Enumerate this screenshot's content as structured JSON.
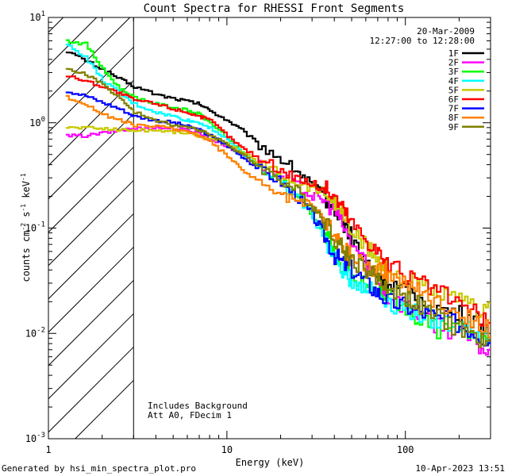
{
  "chart_data": {
    "type": "line",
    "title": "Count Spectra for RHESSI Front Segments",
    "date": "20-Mar-2009",
    "time_range": "12:27:00 to 12:28:00",
    "xlabel": "Energy (keV)",
    "ylabel_main": "counts cm",
    "ylabel_sup1": "-2",
    "ylabel_mid": " s",
    "ylabel_sup2": "-1",
    "ylabel_end": " keV",
    "ylabel_sup3": "-1",
    "xscale": "log",
    "yscale": "log",
    "xlim": [
      1,
      300
    ],
    "ylim": [
      0.001,
      10
    ],
    "x_ticks": [
      {
        "value": 1,
        "label": "1"
      },
      {
        "value": 10,
        "label": "10"
      },
      {
        "value": 100,
        "label": "100"
      }
    ],
    "y_ticks": [
      {
        "value": 10,
        "base": "10",
        "exp": "1"
      },
      {
        "value": 1,
        "base": "10",
        "exp": "0"
      },
      {
        "value": 0.1,
        "base": "10",
        "exp": "-1"
      },
      {
        "value": 0.01,
        "base": "10",
        "exp": "-2"
      },
      {
        "value": 0.001,
        "base": "10",
        "exp": "-3"
      }
    ],
    "shaded_region": {
      "x_start": 1,
      "x_end": 3,
      "style": "hatched"
    },
    "annotations": [
      "Includes Background",
      "Att A0, FDecim 1"
    ],
    "footer_left": "Generated by hsi_min_spectra_plot.pro",
    "footer_right": "10-Apr-2023 13:51",
    "legend_position": "top-right",
    "series": [
      {
        "name": "1F",
        "color": "#000000",
        "x": [
          1.25,
          1.6,
          2,
          2.5,
          3,
          4,
          5,
          6,
          7,
          8,
          10,
          12,
          15,
          20,
          25,
          30,
          35,
          40,
          45,
          50,
          60,
          70,
          80,
          100,
          120,
          150,
          200,
          250,
          300
        ],
        "y": [
          4.8,
          3.9,
          3.2,
          2.6,
          2.2,
          1.85,
          1.7,
          1.6,
          1.5,
          1.3,
          1.05,
          0.85,
          0.62,
          0.45,
          0.34,
          0.25,
          0.2,
          0.16,
          0.11,
          0.08,
          0.045,
          0.035,
          0.03,
          0.025,
          0.02,
          0.017,
          0.015,
          0.013,
          0.01
        ]
      },
      {
        "name": "2F",
        "color": "#ff00ff",
        "x": [
          1.25,
          1.6,
          2,
          2.5,
          3,
          4,
          5,
          6,
          7,
          8,
          10,
          12,
          15,
          20,
          25,
          30,
          35,
          40,
          45,
          50,
          60,
          70,
          80,
          100,
          120,
          150,
          200,
          250,
          300
        ],
        "y": [
          0.75,
          0.75,
          0.8,
          0.85,
          0.88,
          0.9,
          0.88,
          0.85,
          0.8,
          0.7,
          0.6,
          0.5,
          0.4,
          0.3,
          0.25,
          0.2,
          0.18,
          0.15,
          0.1,
          0.07,
          0.045,
          0.03,
          0.022,
          0.018,
          0.015,
          0.012,
          0.01,
          0.008,
          0.006
        ]
      },
      {
        "name": "3F",
        "color": "#00ff00",
        "x": [
          1.25,
          1.6,
          2,
          2.5,
          3,
          4,
          5,
          6,
          7,
          8,
          10,
          12,
          15,
          20,
          25,
          30,
          35,
          40,
          45,
          50,
          60,
          70,
          80,
          100,
          120,
          150,
          200,
          250,
          300
        ],
        "y": [
          6.0,
          5.6,
          3.2,
          2.1,
          1.75,
          1.5,
          1.4,
          1.3,
          1.2,
          1.0,
          0.72,
          0.52,
          0.38,
          0.28,
          0.2,
          0.14,
          0.09,
          0.055,
          0.04,
          0.032,
          0.028,
          0.025,
          0.022,
          0.018,
          0.013,
          0.011,
          0.011,
          0.01,
          0.009
        ]
      },
      {
        "name": "4F",
        "color": "#00ffff",
        "x": [
          1.25,
          1.6,
          2,
          2.5,
          3,
          4,
          5,
          6,
          7,
          8,
          10,
          12,
          15,
          20,
          25,
          30,
          35,
          40,
          45,
          50,
          60,
          70,
          80,
          100,
          120,
          150,
          200,
          250,
          300
        ],
        "y": [
          5.5,
          4.2,
          2.5,
          1.9,
          1.5,
          1.25,
          1.15,
          1.05,
          1.0,
          0.9,
          0.68,
          0.52,
          0.38,
          0.26,
          0.19,
          0.13,
          0.08,
          0.05,
          0.038,
          0.032,
          0.028,
          0.024,
          0.02,
          0.017,
          0.015,
          0.013,
          0.012,
          0.01,
          0.009
        ]
      },
      {
        "name": "5F",
        "color": "#c8c800",
        "x": [
          1.25,
          1.6,
          2,
          2.5,
          3,
          4,
          5,
          6,
          7,
          8,
          10,
          12,
          15,
          20,
          25,
          30,
          35,
          40,
          45,
          50,
          60,
          70,
          80,
          100,
          120,
          150,
          200,
          250,
          300
        ],
        "y": [
          0.9,
          0.9,
          0.88,
          0.86,
          0.85,
          0.85,
          0.82,
          0.8,
          0.75,
          0.7,
          0.62,
          0.52,
          0.42,
          0.32,
          0.27,
          0.24,
          0.22,
          0.18,
          0.13,
          0.09,
          0.065,
          0.05,
          0.04,
          0.033,
          0.028,
          0.024,
          0.02,
          0.017,
          0.016
        ]
      },
      {
        "name": "6F",
        "color": "#ff0000",
        "x": [
          1.25,
          1.6,
          2,
          2.5,
          3,
          4,
          5,
          6,
          7,
          8,
          10,
          12,
          15,
          20,
          25,
          30,
          35,
          40,
          45,
          50,
          60,
          70,
          80,
          100,
          120,
          150,
          200,
          250,
          300
        ],
        "y": [
          2.8,
          2.5,
          2.2,
          1.9,
          1.65,
          1.5,
          1.35,
          1.25,
          1.15,
          1.05,
          0.75,
          0.58,
          0.46,
          0.35,
          0.3,
          0.26,
          0.24,
          0.2,
          0.15,
          0.11,
          0.08,
          0.06,
          0.045,
          0.035,
          0.03,
          0.025,
          0.019,
          0.015,
          0.011
        ]
      },
      {
        "name": "7F",
        "color": "#0000ff",
        "x": [
          1.25,
          1.6,
          2,
          2.5,
          3,
          4,
          5,
          6,
          7,
          8,
          10,
          12,
          15,
          20,
          25,
          30,
          35,
          40,
          45,
          50,
          60,
          70,
          80,
          100,
          120,
          150,
          200,
          250,
          300
        ],
        "y": [
          2.0,
          1.8,
          1.55,
          1.35,
          1.15,
          1.05,
          1.0,
          0.92,
          0.85,
          0.75,
          0.6,
          0.48,
          0.36,
          0.27,
          0.19,
          0.13,
          0.085,
          0.055,
          0.045,
          0.04,
          0.03,
          0.024,
          0.02,
          0.018,
          0.016,
          0.014,
          0.012,
          0.01,
          0.008
        ]
      },
      {
        "name": "8F",
        "color": "#ff8000",
        "x": [
          1.25,
          1.6,
          2,
          2.5,
          3,
          4,
          5,
          6,
          7,
          8,
          10,
          12,
          15,
          20,
          25,
          30,
          35,
          40,
          45,
          50,
          60,
          70,
          80,
          100,
          120,
          150,
          200,
          250,
          300
        ],
        "y": [
          1.75,
          1.5,
          1.2,
          1.05,
          0.95,
          0.92,
          0.88,
          0.82,
          0.75,
          0.65,
          0.48,
          0.36,
          0.27,
          0.2,
          0.18,
          0.16,
          0.12,
          0.085,
          0.065,
          0.055,
          0.045,
          0.04,
          0.036,
          0.03,
          0.025,
          0.02,
          0.016,
          0.013,
          0.01
        ]
      },
      {
        "name": "9F",
        "color": "#808000",
        "x": [
          1.25,
          1.6,
          2,
          2.5,
          3,
          4,
          5,
          6,
          7,
          8,
          10,
          12,
          15,
          20,
          25,
          30,
          35,
          40,
          45,
          50,
          60,
          70,
          80,
          100,
          120,
          150,
          200,
          250,
          300
        ],
        "y": [
          3.2,
          2.9,
          2.3,
          1.7,
          1.25,
          1.05,
          0.95,
          0.9,
          0.85,
          0.78,
          0.62,
          0.5,
          0.38,
          0.28,
          0.22,
          0.16,
          0.12,
          0.08,
          0.06,
          0.05,
          0.04,
          0.032,
          0.027,
          0.022,
          0.018,
          0.014,
          0.011,
          0.009,
          0.007
        ]
      }
    ]
  }
}
